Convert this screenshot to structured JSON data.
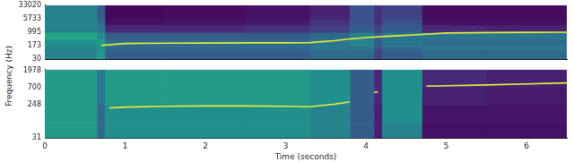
{
  "chart_data": [
    {
      "type": "heatmap",
      "ylabel": "Frequency (Hz)",
      "log": "y",
      "grid": false,
      "tick_labels": "y",
      "xlim": [
        0,
        6.5
      ],
      "xticks": [
        0,
        1,
        2,
        3,
        4,
        5,
        6
      ],
      "ylim": [
        30,
        33020
      ],
      "yticks": [
        30,
        173,
        995,
        5733,
        33020
      ],
      "time_edges": [
        0,
        0.65,
        0.75,
        1.5,
        2.5,
        3.3,
        3.8,
        4.1,
        4.2,
        4.7,
        5.5,
        6.5
      ],
      "freq_edges": [
        30,
        100,
        173,
        400,
        995,
        2500,
        5733,
        33020
      ],
      "cells": [
        [
          0.45,
          0.55,
          0.3,
          0.3,
          0.3,
          0.35,
          0.35,
          0.2,
          0.3,
          0.35,
          0.35
        ],
        [
          0.45,
          0.5,
          0.35,
          0.35,
          0.35,
          0.4,
          0.4,
          0.25,
          0.35,
          0.4,
          0.4
        ],
        [
          0.5,
          0.55,
          0.35,
          0.35,
          0.35,
          0.4,
          0.45,
          0.3,
          0.4,
          0.35,
          0.35
        ],
        [
          0.6,
          0.5,
          0.3,
          0.3,
          0.3,
          0.35,
          0.45,
          0.3,
          0.4,
          0.4,
          0.4
        ],
        [
          0.45,
          0.4,
          0.12,
          0.12,
          0.15,
          0.2,
          0.3,
          0.2,
          0.3,
          0.12,
          0.1
        ],
        [
          0.45,
          0.35,
          0.05,
          0.06,
          0.08,
          0.15,
          0.25,
          0.15,
          0.25,
          0.05,
          0.05
        ],
        [
          0.45,
          0.3,
          0.02,
          0.03,
          0.05,
          0.1,
          0.25,
          0.15,
          0.2,
          0.03,
          0.03
        ]
      ],
      "series": [
        {
          "color": "#e6f03c",
          "x": [
            0.7,
            1,
            1.5,
            2,
            2.5,
            3,
            3.3,
            3.6,
            3.8,
            4.0,
            4.3,
            4.6,
            5,
            5.5,
            6,
            6.5
          ],
          "values": [
            180,
            230,
            240,
            245,
            250,
            250,
            260,
            330,
            420,
            500,
            600,
            700,
            900,
            950,
            980,
            1000
          ]
        }
      ]
    },
    {
      "type": "heatmap",
      "xlabel": "Time (seconds)",
      "log": "y",
      "grid": false,
      "xlim": [
        0,
        6.5
      ],
      "xticks": [
        0,
        1,
        2,
        3,
        4,
        5,
        6
      ],
      "ylim": [
        31,
        2100
      ],
      "yticks": [
        31,
        248,
        700,
        1978
      ],
      "time_edges": [
        0,
        0.65,
        0.75,
        1.5,
        2.5,
        3.3,
        3.8,
        4.1,
        4.2,
        4.7,
        5.5,
        6.5
      ],
      "freq_edges": [
        31,
        80,
        248,
        700,
        2100
      ],
      "cells": [
        [
          0.55,
          0.35,
          0.5,
          0.5,
          0.5,
          0.45,
          0.3,
          0.1,
          0.45,
          0.05,
          0.05
        ],
        [
          0.55,
          0.35,
          0.5,
          0.5,
          0.5,
          0.45,
          0.3,
          0.1,
          0.5,
          0.06,
          0.06
        ],
        [
          0.55,
          0.4,
          0.55,
          0.55,
          0.55,
          0.5,
          0.3,
          0.12,
          0.5,
          0.1,
          0.08
        ],
        [
          0.55,
          0.4,
          0.55,
          0.55,
          0.55,
          0.5,
          0.3,
          0.12,
          0.5,
          0.12,
          0.1
        ]
      ],
      "series": [
        {
          "color": "#e6f03c",
          "x": [
            0.8,
            1,
            1.5,
            2,
            2.5,
            3,
            3.3,
            3.6,
            3.8,
            3.95,
            4.1,
            4.15,
            4.4,
            4.75,
            5.5,
            6,
            6.5
          ],
          "values": [
            200,
            210,
            220,
            225,
            225,
            220,
            215,
            250,
            290,
            null,
            520,
            530,
            null,
            760,
            820,
            870,
            930
          ]
        }
      ]
    }
  ]
}
